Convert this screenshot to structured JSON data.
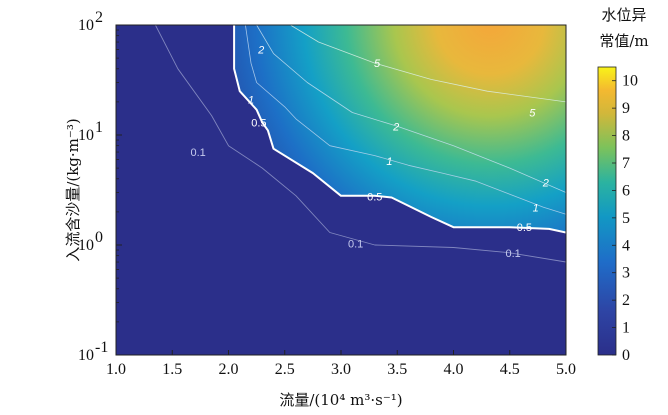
{
  "chart_data": {
    "type": "heatmap",
    "xlabel": "流量/(10⁴ m³·s⁻¹)",
    "ylabel": "入流含沙量/(kg·m⁻³)",
    "xlim": [
      1.0,
      5.0
    ],
    "ylim": [
      0.1,
      100
    ],
    "y_scale": "log",
    "x_ticks": [
      "1.0",
      "1.5",
      "2.0",
      "2.5",
      "3.0",
      "3.5",
      "4.0",
      "4.5",
      "5.0"
    ],
    "y_ticks": [
      {
        "base": "10",
        "exp": "-1",
        "value": 0.1
      },
      {
        "base": "10",
        "exp": "0",
        "value": 1
      },
      {
        "base": "10",
        "exp": "1",
        "value": 10
      },
      {
        "base": "10",
        "exp": "2",
        "value": 100
      }
    ],
    "colorbar": {
      "title_lines": [
        "水位异",
        "常值/m"
      ],
      "range": [
        0,
        10.5
      ],
      "ticks": [
        "0",
        "1",
        "2",
        "3",
        "4",
        "5",
        "6",
        "7",
        "8",
        "9",
        "10"
      ]
    },
    "contours": [
      {
        "level": "0.1",
        "points": [
          [
            1.35,
            100
          ],
          [
            1.55,
            40
          ],
          [
            1.85,
            15
          ],
          [
            2.0,
            8
          ],
          [
            2.3,
            5
          ],
          [
            2.6,
            2.8
          ],
          [
            2.9,
            1.3
          ],
          [
            3.3,
            1.0
          ],
          [
            4.0,
            0.95
          ],
          [
            4.5,
            0.85
          ],
          [
            5.0,
            0.7
          ]
        ],
        "labels": [
          {
            "text": "0.1",
            "x": 1.73,
            "y": 7.0
          },
          {
            "text": "0.1",
            "x": 3.13,
            "y": 1.03
          },
          {
            "text": "0.1",
            "x": 4.53,
            "y": 0.85
          }
        ]
      },
      {
        "level": "0.5",
        "points": [
          [
            2.05,
            100
          ],
          [
            2.05,
            40
          ],
          [
            2.1,
            25
          ],
          [
            2.25,
            17
          ],
          [
            2.3,
            13
          ],
          [
            2.35,
            11
          ],
          [
            2.4,
            7.5
          ],
          [
            2.75,
            4.5
          ],
          [
            3.0,
            2.8
          ],
          [
            3.3,
            2.8
          ],
          [
            3.45,
            2.7
          ],
          [
            3.8,
            1.8
          ],
          [
            4.0,
            1.45
          ],
          [
            4.5,
            1.45
          ],
          [
            4.85,
            1.4
          ],
          [
            5.0,
            1.3
          ]
        ],
        "labels": [
          {
            "text": "0.5",
            "x": 2.27,
            "y": 13.0
          },
          {
            "text": "0.5",
            "x": 3.3,
            "y": 2.75
          },
          {
            "text": "0.5",
            "x": 4.63,
            "y": 1.45
          }
        ]
      },
      {
        "level": "1",
        "points": [
          [
            2.15,
            100
          ],
          [
            2.2,
            45
          ],
          [
            2.25,
            30
          ],
          [
            2.5,
            18
          ],
          [
            2.6,
            14
          ],
          [
            2.9,
            8
          ],
          [
            3.3,
            6.5
          ],
          [
            3.6,
            5.3
          ],
          [
            3.9,
            4.5
          ],
          [
            4.2,
            3.8
          ],
          [
            4.8,
            2.2
          ],
          [
            5.0,
            1.9
          ]
        ],
        "labels": [
          {
            "text": "1",
            "x": 2.2,
            "y": 21.0
          },
          {
            "text": "1",
            "x": 3.43,
            "y": 5.8
          },
          {
            "text": "1",
            "x": 4.73,
            "y": 2.2
          }
        ]
      },
      {
        "level": "2",
        "points": [
          [
            2.25,
            100
          ],
          [
            2.4,
            55
          ],
          [
            2.7,
            30
          ],
          [
            3.1,
            16
          ],
          [
            3.5,
            12
          ],
          [
            4.0,
            8
          ],
          [
            4.5,
            5
          ],
          [
            5.0,
            3
          ]
        ],
        "labels": [
          {
            "text": "2",
            "x": 2.29,
            "y": 60.0
          },
          {
            "text": "2",
            "x": 3.49,
            "y": 12.0
          },
          {
            "text": "2",
            "x": 4.82,
            "y": 3.7
          }
        ]
      },
      {
        "level": "5",
        "points": [
          [
            2.55,
            100
          ],
          [
            2.8,
            70
          ],
          [
            3.3,
            45
          ],
          [
            3.8,
            32
          ],
          [
            4.3,
            25
          ],
          [
            5.0,
            20
          ]
        ],
        "labels": [
          {
            "text": "5",
            "x": 3.32,
            "y": 45.0
          },
          {
            "text": "5",
            "x": 4.7,
            "y": 16.0
          }
        ]
      }
    ]
  }
}
